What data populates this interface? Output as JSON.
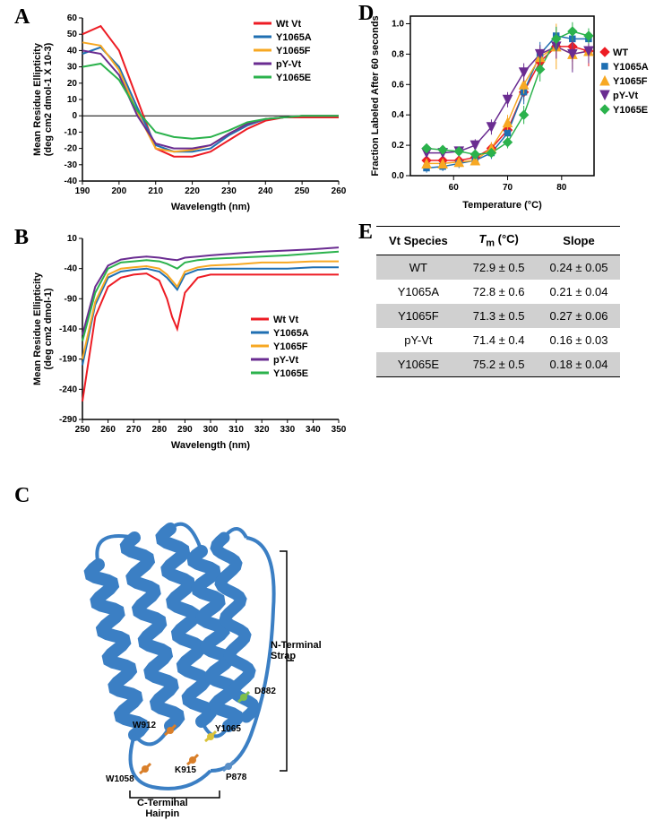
{
  "panels": {
    "A": "A",
    "B": "B",
    "C": "C",
    "D": "D",
    "E": "E"
  },
  "series_colors": {
    "WT": "#ed1c24",
    "Y1065A": "#1f6fb2",
    "Y1065F": "#f7a823",
    "pY": "#6a2c91",
    "Y1065E": "#2bb24c"
  },
  "chartA": {
    "type": "line",
    "title": "",
    "xlabel": "Wavelength (nm)",
    "ylabel": "Mean Residue Ellipticity\n(deg cm2 dmol-1 X 10-3)",
    "xlim": [
      190,
      260
    ],
    "xtick_step": 10,
    "ylim": [
      -40,
      60
    ],
    "ytick_step": 10,
    "line_width": 2,
    "background_color": "#ffffff",
    "legend": [
      "Wt Vt",
      "Y1065A",
      "Y1065F",
      "pY-Vt",
      "Y1065E"
    ],
    "legend_colors": [
      "#ed1c24",
      "#1f6fb2",
      "#f7a823",
      "#6a2c91",
      "#2bb24c"
    ],
    "data": {
      "x": [
        190,
        195,
        200,
        205,
        210,
        215,
        220,
        225,
        230,
        235,
        240,
        245,
        250,
        255,
        260
      ],
      "WT": [
        50,
        55,
        40,
        10,
        -20,
        -25,
        -25,
        -22,
        -15,
        -8,
        -3,
        -1,
        -1,
        -1,
        -1
      ],
      "Y1065A": [
        38,
        42,
        30,
        5,
        -18,
        -22,
        -22,
        -20,
        -12,
        -6,
        -2,
        -1,
        0,
        0,
        0
      ],
      "Y1065F": [
        45,
        43,
        28,
        2,
        -20,
        -22,
        -21,
        -18,
        -11,
        -5,
        -2,
        -1,
        0,
        0,
        0
      ],
      "pY": [
        40,
        38,
        25,
        0,
        -17,
        -20,
        -20,
        -18,
        -11,
        -5,
        -2,
        -1,
        0,
        0,
        0
      ],
      "Y1065E": [
        30,
        32,
        22,
        3,
        -10,
        -13,
        -14,
        -13,
        -9,
        -4,
        -2,
        -1,
        0,
        0,
        0
      ]
    }
  },
  "chartB": {
    "type": "line",
    "xlabel": "Wavelength (nm)",
    "ylabel": "Mean Residue Ellipticity\n(deg cm2 dmol-1)",
    "xlim": [
      250,
      350
    ],
    "xtick_step": 10,
    "ylim": [
      -290,
      10
    ],
    "yticks": [
      -290,
      -240,
      -190,
      -140,
      -90,
      -40,
      10
    ],
    "line_width": 2,
    "legend": [
      "Wt Vt",
      "Y1065A",
      "Y1065F",
      "pY-Vt",
      "Y1065E"
    ],
    "legend_colors": [
      "#ed1c24",
      "#1f6fb2",
      "#f7a823",
      "#6a2c91",
      "#2bb24c"
    ],
    "data": {
      "x": [
        250,
        255,
        260,
        265,
        270,
        275,
        280,
        283,
        285,
        287,
        290,
        295,
        300,
        310,
        320,
        330,
        340,
        350
      ],
      "WT": [
        -260,
        -120,
        -70,
        -55,
        -50,
        -48,
        -60,
        -90,
        -120,
        -140,
        -80,
        -55,
        -50,
        -50,
        -50,
        -50,
        -50,
        -50
      ],
      "Y1065A": [
        -200,
        -100,
        -55,
        -45,
        -42,
        -40,
        -45,
        -55,
        -65,
        -75,
        -50,
        -42,
        -40,
        -40,
        -40,
        -40,
        -38,
        -38
      ],
      "Y1065F": [
        -190,
        -95,
        -50,
        -40,
        -38,
        -36,
        -40,
        -50,
        -60,
        -70,
        -45,
        -38,
        -35,
        -33,
        -30,
        -30,
        -28,
        -28
      ],
      "pY": [
        -150,
        -70,
        -35,
        -25,
        -22,
        -20,
        -22,
        -24,
        -25,
        -26,
        -22,
        -20,
        -18,
        -15,
        -12,
        -10,
        -8,
        -5
      ],
      "Y1065E": [
        -160,
        -80,
        -40,
        -30,
        -28,
        -26,
        -28,
        -32,
        -36,
        -40,
        -30,
        -26,
        -24,
        -22,
        -20,
        -18,
        -15,
        -12
      ]
    }
  },
  "chartD": {
    "type": "scatter-fit",
    "xlabel": "Temperature (°C)",
    "ylabel": "Fraction Labeled After 60 seconds",
    "xlim": [
      52,
      86
    ],
    "xticks": [
      60,
      70,
      80
    ],
    "ylim": [
      0,
      1.05
    ],
    "ytick_step": 0.2,
    "marker_size": 5,
    "line_width": 1.5,
    "legend": [
      "WT",
      "Y1065A",
      "Y1065F",
      "pY-Vt",
      "Y1065E"
    ],
    "legend_colors": [
      "#ed1c24",
      "#1f6fb2",
      "#f7a823",
      "#6a2c91",
      "#2bb24c"
    ],
    "markers": [
      "diamond",
      "square",
      "triangle",
      "triangle-down",
      "diamond"
    ],
    "data": {
      "x": [
        55,
        58,
        61,
        64,
        67,
        70,
        73,
        76,
        79,
        82,
        85
      ],
      "WT": [
        0.1,
        0.1,
        0.1,
        0.12,
        0.18,
        0.3,
        0.55,
        0.75,
        0.85,
        0.85,
        0.82
      ],
      "Y1065A": [
        0.05,
        0.06,
        0.08,
        0.1,
        0.15,
        0.28,
        0.55,
        0.8,
        0.92,
        0.9,
        0.9
      ],
      "Y1065F": [
        0.08,
        0.08,
        0.09,
        0.1,
        0.18,
        0.35,
        0.6,
        0.78,
        0.85,
        0.8,
        0.82
      ],
      "pY": [
        0.15,
        0.15,
        0.16,
        0.2,
        0.32,
        0.5,
        0.68,
        0.8,
        0.85,
        0.8,
        0.82
      ],
      "Y1065E": [
        0.18,
        0.17,
        0.16,
        0.14,
        0.15,
        0.22,
        0.4,
        0.7,
        0.9,
        0.95,
        0.92
      ]
    },
    "err": {
      "WT": [
        0.03,
        0.03,
        0.03,
        0.03,
        0.04,
        0.05,
        0.06,
        0.06,
        0.08,
        0.1,
        0.1
      ],
      "Y1065A": [
        0.03,
        0.03,
        0.03,
        0.03,
        0.04,
        0.05,
        0.08,
        0.08,
        0.06,
        0.05,
        0.05
      ],
      "Y1065F": [
        0.03,
        0.03,
        0.03,
        0.03,
        0.04,
        0.05,
        0.06,
        0.06,
        0.15,
        0.1,
        0.08
      ],
      "pY": [
        0.03,
        0.03,
        0.03,
        0.04,
        0.05,
        0.05,
        0.06,
        0.06,
        0.08,
        0.12,
        0.08
      ],
      "Y1065E": [
        0.03,
        0.03,
        0.03,
        0.03,
        0.03,
        0.04,
        0.06,
        0.08,
        0.08,
        0.06,
        0.05
      ]
    }
  },
  "tableE": {
    "columns": [
      "Vt Species",
      "Tm (°C)",
      "Slope"
    ],
    "col1_header_html": "Vt Species",
    "col2_header_html": "T<sub>m</sub> (°C)",
    "col3_header_html": "Slope",
    "rows": [
      [
        "WT",
        "72.9 ± 0.5",
        "0.24 ± 0.05"
      ],
      [
        "Y1065A",
        "72.8 ± 0.6",
        "0.21 ± 0.04"
      ],
      [
        "Y1065F",
        "71.3 ± 0.5",
        "0.27 ± 0.06"
      ],
      [
        "pY-Vt",
        "71.4 ± 0.4",
        "0.16 ± 0.03"
      ],
      [
        "Y1065E",
        "75.2 ± 0.5",
        "0.18 ± 0.04"
      ]
    ],
    "row_bg_odd": "#d0d0d0",
    "row_bg_even": "#ffffff",
    "header_border": "#000000",
    "font_size": 13
  },
  "panelC": {
    "labels": {
      "n_strap": "N-Terminal\nStrap",
      "c_hairpin": "C-Terminal\nHairpin",
      "D882": "D882",
      "W912": "W912",
      "Y1065": "Y1065",
      "K915": "K915",
      "P878": "P878",
      "W1058": "W1058"
    },
    "ribbon_color": "#3b7fc4",
    "residue_colors": {
      "D882": "#7fbf4d",
      "W912": "#d97f2a",
      "Y1065": "#d9c23a",
      "K915": "#d97f2a",
      "P878": "#5a8fc7",
      "W1058": "#d97f2a"
    }
  }
}
